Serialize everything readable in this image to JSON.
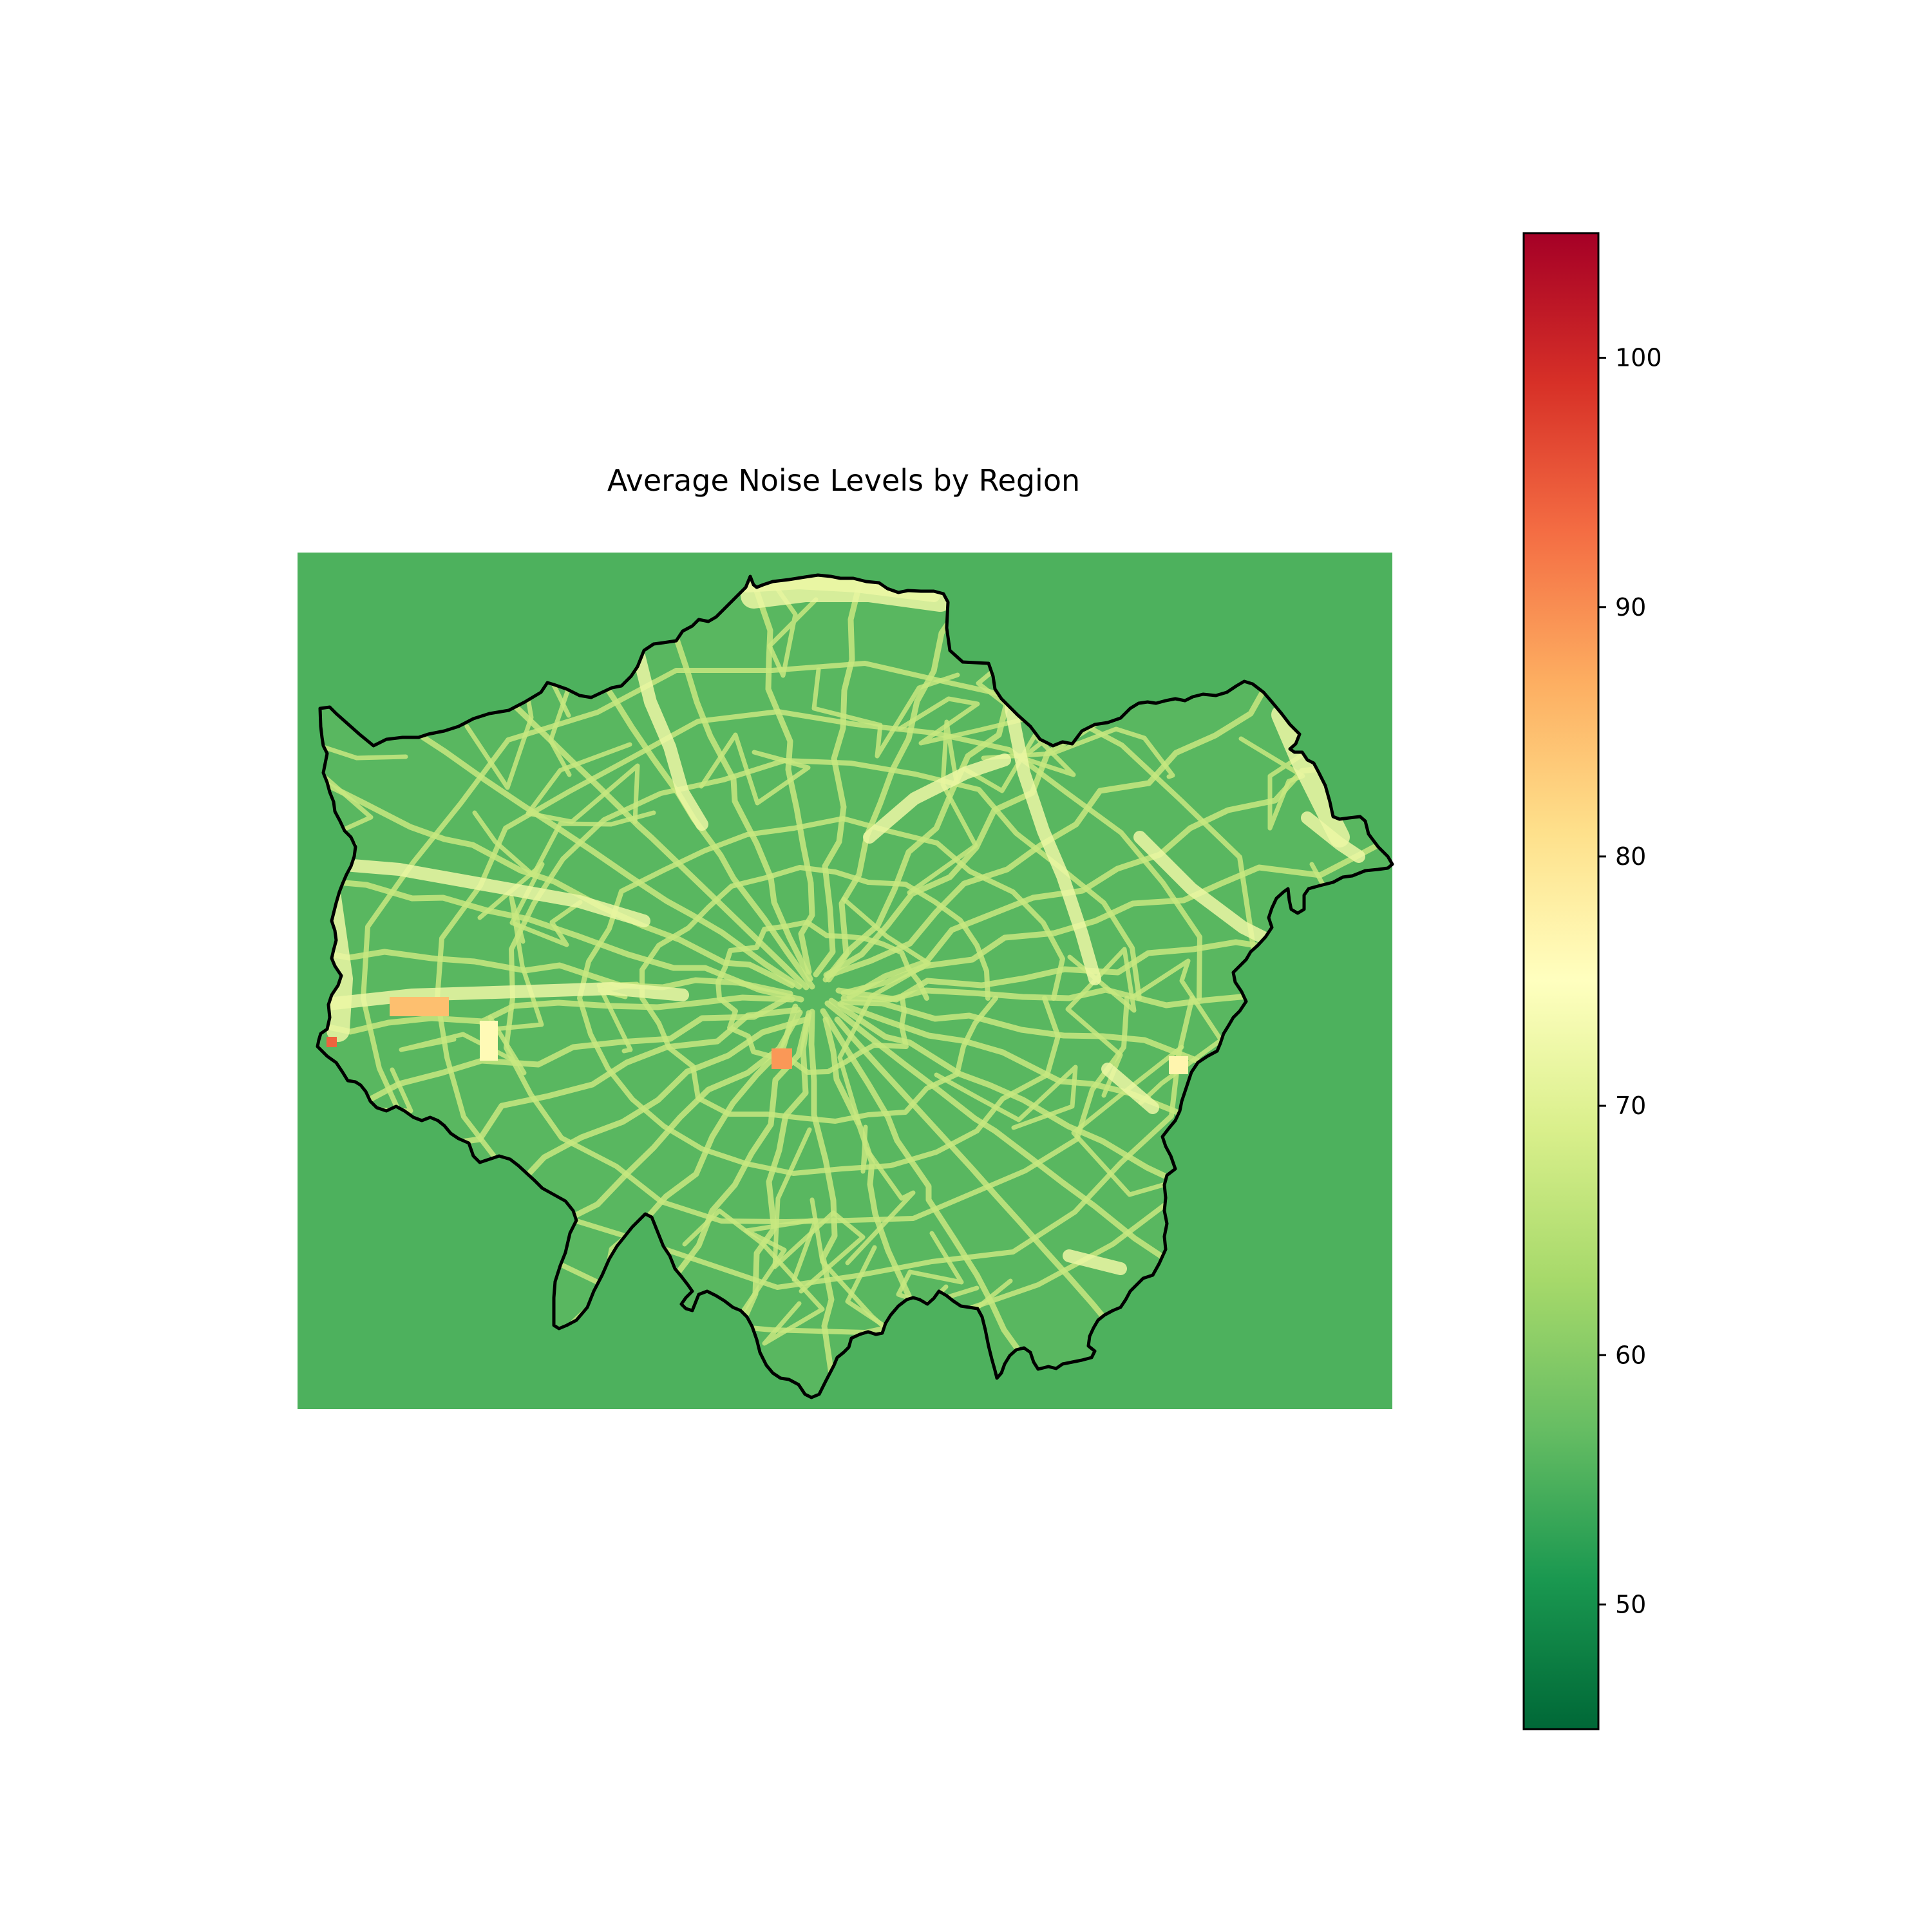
{
  "chart_data": {
    "type": "heatmap",
    "title": "Average Noise Levels by Region",
    "xlabel": "",
    "ylabel": "",
    "axes_visible": false,
    "colormap": "RdYlGn_r",
    "background_value": 55,
    "colorbar": {
      "min": 45,
      "max": 105,
      "ticks": [
        50,
        60,
        70,
        80,
        90,
        100
      ],
      "tick_labels": [
        "50",
        "60",
        "70",
        "80",
        "90",
        "100"
      ],
      "stops": [
        {
          "value": 45,
          "color": "#006837"
        },
        {
          "value": 51,
          "color": "#1a9850"
        },
        {
          "value": 57,
          "color": "#66bd63"
        },
        {
          "value": 63,
          "color": "#a6d96a"
        },
        {
          "value": 69,
          "color": "#d9ef8b"
        },
        {
          "value": 75,
          "color": "#ffffbf"
        },
        {
          "value": 81,
          "color": "#fee08b"
        },
        {
          "value": 87,
          "color": "#fdae61"
        },
        {
          "value": 93,
          "color": "#f46d43"
        },
        {
          "value": 99,
          "color": "#d73027"
        },
        {
          "value": 105,
          "color": "#a50026"
        }
      ]
    },
    "region_fill_value": 56,
    "road_value": 67,
    "major_road_value": 72,
    "hotspots": [
      {
        "name": "west-hotspot",
        "value": 85
      },
      {
        "name": "west-edge-hotspot",
        "value": 94
      },
      {
        "name": "central-hotspot",
        "value": 89
      },
      {
        "name": "west-light-block",
        "value": 76
      },
      {
        "name": "east-light-block",
        "value": 77
      }
    ],
    "boundary_color": "#000000"
  }
}
